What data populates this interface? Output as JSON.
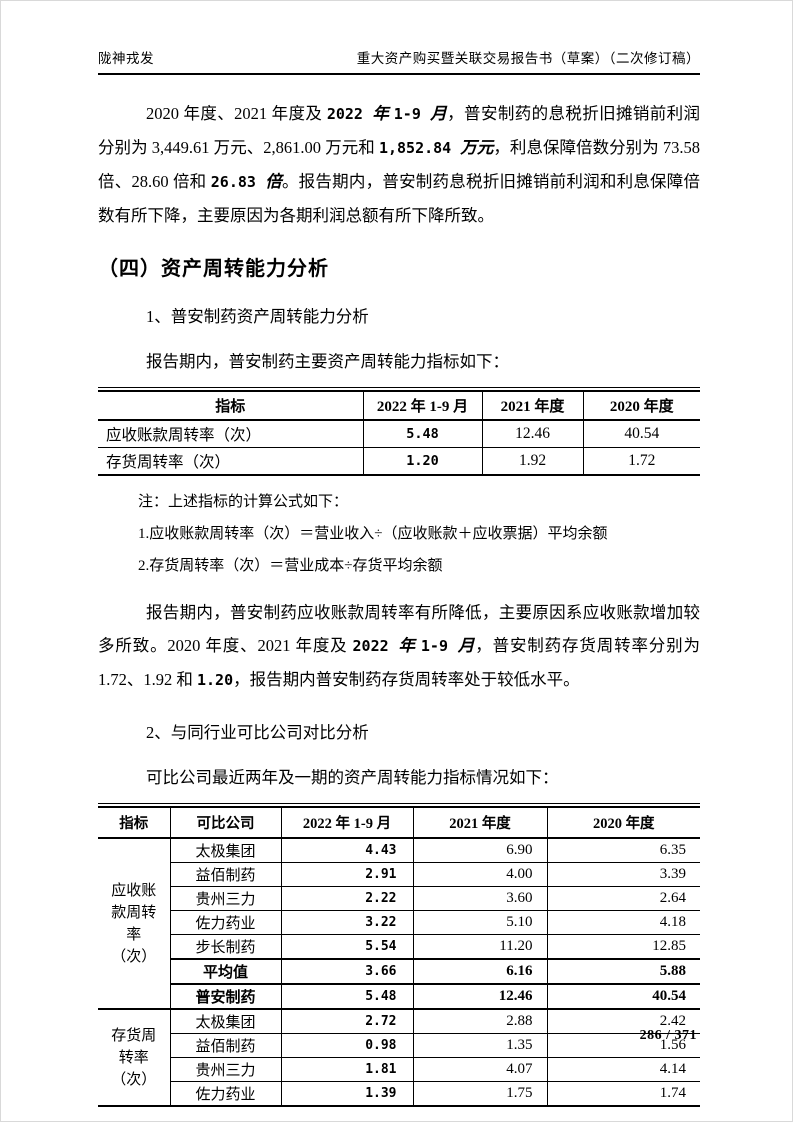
{
  "header": {
    "left": "陇神戎发",
    "right": "重大资产购买暨关联交易报告书（草案）（二次修订稿）"
  },
  "headings": {
    "section": "（四）资产周转能力分析",
    "sub1": "1、普安制药资产周转能力分析",
    "sub2": "2、与同行业可比公司对比分析"
  },
  "paragraphs": {
    "p1": {
      "segments": [
        {
          "t": "2020 年度、2021 年度及 ",
          "s": "n"
        },
        {
          "t": "2022 ",
          "s": "b"
        },
        {
          "t": "年 ",
          "s": "bi"
        },
        {
          "t": "1-9 ",
          "s": "b"
        },
        {
          "t": "月",
          "s": "bi"
        },
        {
          "t": "，普安制药的息税折旧摊销前利润分别为 3,449.61 万元、2,861.00 万元和 ",
          "s": "n"
        },
        {
          "t": "1,852.84 ",
          "s": "b"
        },
        {
          "t": "万元",
          "s": "bi"
        },
        {
          "t": "，利息保障倍数分别为 73.58 倍、28.60 倍和 ",
          "s": "n"
        },
        {
          "t": "26.83 ",
          "s": "b"
        },
        {
          "t": "倍",
          "s": "bi"
        },
        {
          "t": "。报告期内，普安制药息税折旧摊销前利润和利息保障倍数有所下降，主要原因为各期利润总额有所下降所致。",
          "s": "n"
        }
      ]
    },
    "intro1": "报告期内，普安制药主要资产周转能力指标如下：",
    "notes": [
      "注：上述指标的计算公式如下：",
      "1.应收账款周转率（次）＝营业收入÷（应收账款＋应收票据）平均余额",
      "2.存货周转率（次）＝营业成本÷存货平均余额"
    ],
    "p3": {
      "segments": [
        {
          "t": "报告期内，普安制药应收账款周转率有所降低，主要原因系应收账款增加较多所致。2020 年度、2021 年度及 ",
          "s": "n"
        },
        {
          "t": "2022 ",
          "s": "b"
        },
        {
          "t": "年 ",
          "s": "bi"
        },
        {
          "t": "1-9 ",
          "s": "b"
        },
        {
          "t": "月",
          "s": "bi"
        },
        {
          "t": "，普安制药存货周转率分别为 1.72、1.92 和 ",
          "s": "n"
        },
        {
          "t": "1.20",
          "s": "b"
        },
        {
          "t": "，报告期内普安制药存货周转率处于较低水平。",
          "s": "n"
        }
      ]
    },
    "intro2": "可比公司最近两年及一期的资产周转能力指标情况如下："
  },
  "table1": {
    "headers": [
      "指标",
      "2022 年 1-9 月",
      "2021 年度",
      "2020 年度"
    ],
    "rows": [
      {
        "label": "应收账款周转率（次）",
        "v2022": "5.48",
        "v2021": "12.46",
        "v2020": "40.54"
      },
      {
        "label": "存货周转率（次）",
        "v2022": "1.20",
        "v2021": "1.92",
        "v2020": "1.72"
      }
    ]
  },
  "table2": {
    "headers": [
      "指标",
      "可比公司",
      "2022 年 1-9 月",
      "2021 年度",
      "2020 年度"
    ],
    "groups": [
      {
        "label": "应收账款周转率（次）",
        "rows": [
          {
            "company": "太极集团",
            "v2022": "4.43",
            "v2021": "6.90",
            "v2020": "6.35",
            "bold": false
          },
          {
            "company": "益佰制药",
            "v2022": "2.91",
            "v2021": "4.00",
            "v2020": "3.39",
            "bold": false
          },
          {
            "company": "贵州三力",
            "v2022": "2.22",
            "v2021": "3.60",
            "v2020": "2.64",
            "bold": false
          },
          {
            "company": "佐力药业",
            "v2022": "3.22",
            "v2021": "5.10",
            "v2020": "4.18",
            "bold": false
          },
          {
            "company": "步长制药",
            "v2022": "5.54",
            "v2021": "11.20",
            "v2020": "12.85",
            "bold": false
          },
          {
            "company": "平均值",
            "v2022": "3.66",
            "v2021": "6.16",
            "v2020": "5.88",
            "bold": true
          },
          {
            "company": "普安制药",
            "v2022": "5.48",
            "v2021": "12.46",
            "v2020": "40.54",
            "bold": true
          }
        ]
      },
      {
        "label": "存货周转率（次）",
        "rows": [
          {
            "company": "太极集团",
            "v2022": "2.72",
            "v2021": "2.88",
            "v2020": "2.42",
            "bold": false
          },
          {
            "company": "益佰制药",
            "v2022": "0.98",
            "v2021": "1.35",
            "v2020": "1.56",
            "bold": false
          },
          {
            "company": "贵州三力",
            "v2022": "1.81",
            "v2021": "4.07",
            "v2020": "4.14",
            "bold": false
          },
          {
            "company": "佐力药业",
            "v2022": "1.39",
            "v2021": "1.75",
            "v2020": "1.74",
            "bold": false
          }
        ]
      }
    ]
  },
  "footer": {
    "page_number": "286 / 371"
  }
}
